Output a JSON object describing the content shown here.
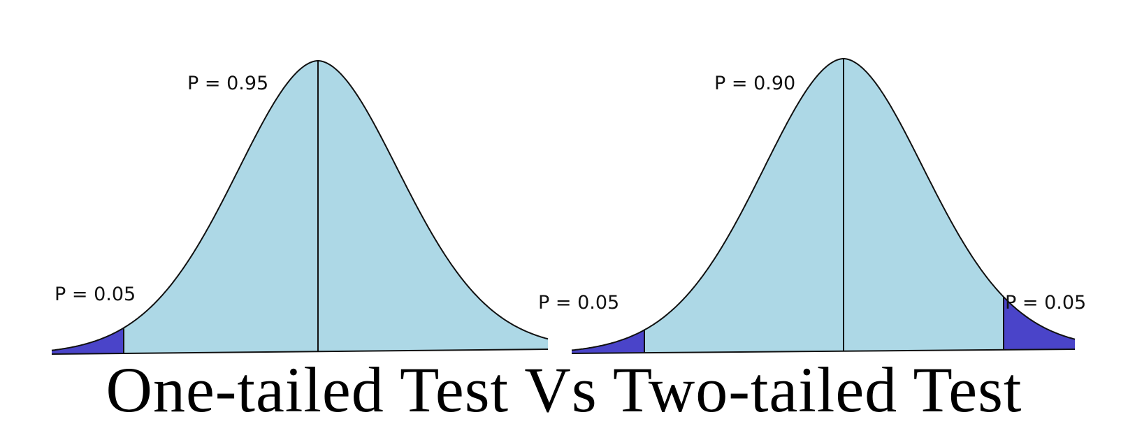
{
  "title": "One-tailed Test Vs Two-tailed Test",
  "colors": {
    "body": "#add8e6",
    "tail": "#4a44c9",
    "outline": "#111111"
  },
  "one_tailed": {
    "center_label": "P = 0.95",
    "left_tail_label": "P = 0.05"
  },
  "two_tailed": {
    "center_label": "P = 0.90",
    "left_tail_label": "P = 0.05",
    "right_tail_label": "P = 0.05"
  }
}
